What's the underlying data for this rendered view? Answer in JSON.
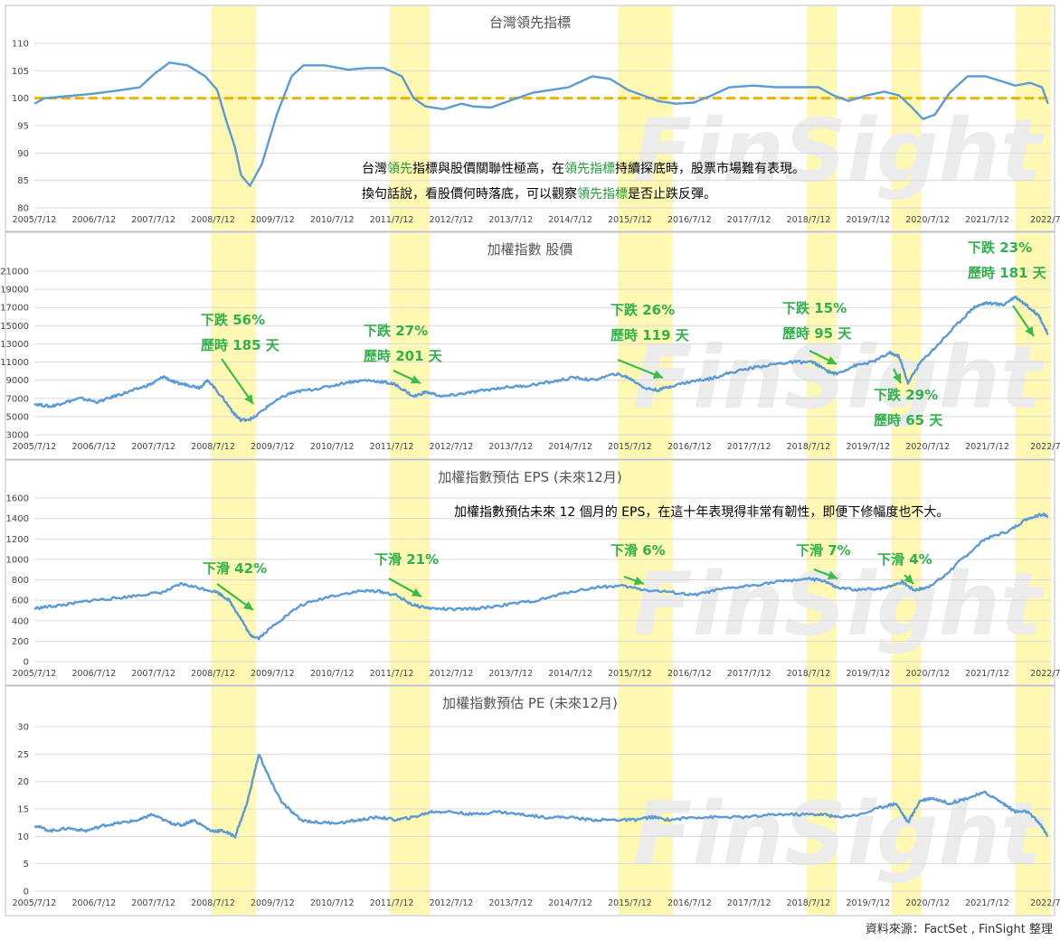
{
  "source_note": "資料來源：FactSet , FinSight 整理",
  "watermark": "FinSight",
  "chart_data": [
    {
      "type": "line",
      "title": "台灣領先指標",
      "color": "#5b9bd5",
      "reference_line": {
        "value": 100,
        "color": "#f0b400",
        "style": "dashed"
      },
      "ylim": [
        80,
        110
      ],
      "yticks": [
        80,
        85,
        90,
        95,
        100,
        105,
        110
      ],
      "xlim": [
        2005.53,
        2022.6
      ],
      "xtick_labels": [
        "2005/7/12",
        "2006/7/12",
        "2007/7/12",
        "2008/7/12",
        "2009/7/12",
        "2010/7/12",
        "2011/7/12",
        "2012/7/12",
        "2013/7/12",
        "2014/7/12",
        "2015/7/12",
        "2016/7/12",
        "2017/7/12",
        "2018/7/12",
        "2019/7/12",
        "2020/7/12",
        "2021/7/12",
        "2022/7/"
      ],
      "highlight_periods": [
        [
          2008.5,
          2009.25
        ],
        [
          2011.5,
          2012.17
        ],
        [
          2015.33,
          2016.25
        ],
        [
          2018.5,
          2019.0
        ],
        [
          2019.92,
          2020.42
        ],
        [
          2022.0,
          2022.6
        ]
      ],
      "annotations": [
        {
          "text_parts": [
            [
              "台灣",
              0
            ],
            [
              "領先",
              1
            ],
            [
              "指標與股價關聯性極高，在",
              0
            ],
            [
              "領先指標",
              1
            ],
            [
              "持續探底時，股票市場難有表現。",
              0
            ]
          ]
        },
        {
          "text_parts": [
            [
              "換句話說，看股價何時落底，可以觀察",
              0
            ],
            [
              "領先指標",
              1
            ],
            [
              "是否止跌反彈。",
              0
            ]
          ]
        }
      ],
      "x": [
        2005.53,
        2005.7,
        2006.0,
        2006.5,
        2007.0,
        2007.3,
        2007.55,
        2007.8,
        2008.1,
        2008.4,
        2008.6,
        2008.75,
        2008.9,
        2009.0,
        2009.15,
        2009.35,
        2009.6,
        2009.85,
        2010.05,
        2010.4,
        2010.8,
        2011.1,
        2011.4,
        2011.7,
        2011.9,
        2012.1,
        2012.4,
        2012.7,
        2012.9,
        2013.2,
        2013.5,
        2013.9,
        2014.2,
        2014.5,
        2014.9,
        2015.2,
        2015.5,
        2015.8,
        2016.0,
        2016.3,
        2016.6,
        2016.9,
        2017.2,
        2017.6,
        2018.0,
        2018.4,
        2018.7,
        2018.95,
        2019.2,
        2019.5,
        2019.8,
        2020.05,
        2020.25,
        2020.45,
        2020.65,
        2020.9,
        2021.2,
        2021.5,
        2021.8,
        2022.0,
        2022.25,
        2022.45,
        2022.55
      ],
      "values": [
        99,
        100,
        100.3,
        100.8,
        101.5,
        102,
        104.5,
        106.5,
        106,
        104,
        101.5,
        96,
        91,
        86,
        84,
        88,
        97,
        104,
        106,
        106,
        105.2,
        105.5,
        105.5,
        104,
        100,
        98.5,
        98,
        99,
        98.5,
        98.3,
        99.5,
        101,
        101.5,
        102,
        104,
        103.5,
        101.5,
        100.3,
        99.5,
        99,
        99.2,
        100.5,
        102,
        102.3,
        102,
        102,
        102,
        100.5,
        99.5,
        100.5,
        101.2,
        100.5,
        98.5,
        96.2,
        97,
        101,
        104,
        104,
        103,
        102.3,
        102.8,
        102,
        99
      ]
    },
    {
      "type": "line",
      "title": "加權指數 股價",
      "color": "#5b9bd5",
      "ylim": [
        3000,
        21000
      ],
      "yticks": [
        3000,
        5000,
        7000,
        9000,
        11000,
        13000,
        15000,
        17000,
        19000,
        21000
      ],
      "xlim": [
        2005.53,
        2022.6
      ],
      "xtick_labels": [
        "2005/7/12",
        "2006/7/12",
        "2007/7/12",
        "2008/7/12",
        "2009/7/12",
        "2010/7/12",
        "2011/7/12",
        "2012/7/12",
        "2013/7/12",
        "2014/7/12",
        "2015/7/12",
        "2016/7/12",
        "2017/7/12",
        "2018/7/12",
        "2019/7/12",
        "2020/7/12",
        "2021/7/12",
        "2022/7/"
      ],
      "highlight_periods": [
        [
          2008.5,
          2009.25
        ],
        [
          2011.5,
          2012.17
        ],
        [
          2015.33,
          2016.25
        ],
        [
          2018.5,
          2019.0
        ],
        [
          2019.92,
          2020.42
        ],
        [
          2022.0,
          2022.6
        ]
      ],
      "callouts": [
        {
          "line1": "下跌 56%",
          "line2": "歷時 185 天"
        },
        {
          "line1": "下跌 27%",
          "line2": "歷時 201 天"
        },
        {
          "line1": "下跌 26%",
          "line2": "歷時 119 天"
        },
        {
          "line1": "下跌 15%",
          "line2": "歷時 95 天"
        },
        {
          "line1": "下跌 29%",
          "line2": "歷時 65 天"
        },
        {
          "line1": "下跌 23%",
          "line2": "歷時 181 天"
        }
      ],
      "x": [
        2005.53,
        2005.8,
        2006.0,
        2006.3,
        2006.6,
        2006.9,
        2007.2,
        2007.5,
        2007.7,
        2007.9,
        2008.1,
        2008.3,
        2008.45,
        2008.7,
        2008.9,
        2009.0,
        2009.2,
        2009.5,
        2009.8,
        2010.0,
        2010.4,
        2010.8,
        2011.1,
        2011.4,
        2011.6,
        2011.9,
        2012.1,
        2012.4,
        2012.7,
        2013.0,
        2013.4,
        2013.8,
        2014.2,
        2014.6,
        2014.9,
        2015.3,
        2015.5,
        2015.8,
        2016.0,
        2016.3,
        2016.6,
        2016.9,
        2017.2,
        2017.6,
        2018.0,
        2018.3,
        2018.6,
        2018.85,
        2019.0,
        2019.3,
        2019.6,
        2019.9,
        2020.05,
        2020.2,
        2020.4,
        2020.7,
        2021.0,
        2021.3,
        2021.5,
        2021.8,
        2022.0,
        2022.2,
        2022.4,
        2022.55
      ],
      "values": [
        6400,
        6100,
        6500,
        7000,
        6600,
        7300,
        7900,
        8600,
        9400,
        8700,
        8500,
        8200,
        9000,
        7000,
        5200,
        4600,
        4800,
        6400,
        7500,
        7800,
        8200,
        8800,
        9000,
        8800,
        8500,
        7200,
        7700,
        7200,
        7500,
        7800,
        8200,
        8400,
        8800,
        9300,
        9000,
        9700,
        9300,
        8100,
        7900,
        8500,
        8900,
        9200,
        9800,
        10400,
        10800,
        11000,
        11000,
        10000,
        9700,
        10600,
        11000,
        12000,
        11600,
        8700,
        10900,
        12900,
        15000,
        17000,
        17500,
        17300,
        18200,
        17200,
        16100,
        14000
      ]
    },
    {
      "type": "line",
      "title": "加權指數預估 EPS (未來12月)",
      "color": "#5b9bd5",
      "ylim": [
        0,
        1600
      ],
      "yticks": [
        0,
        200,
        400,
        600,
        800,
        1000,
        1200,
        1400,
        1600
      ],
      "xlim": [
        2005.53,
        2022.6
      ],
      "xtick_labels": [
        "2005/7/12",
        "2006/7/12",
        "2007/7/12",
        "2008/7/12",
        "2009/7/12",
        "2010/7/12",
        "2011/7/12",
        "2012/7/12",
        "2013/7/12",
        "2014/7/12",
        "2015/7/12",
        "2016/7/12",
        "2017/7/12",
        "2018/7/12",
        "2019/7/12",
        "2020/7/12",
        "2021/7/12",
        "2022/7/"
      ],
      "highlight_periods": [
        [
          2008.5,
          2009.25
        ],
        [
          2011.5,
          2012.17
        ],
        [
          2015.33,
          2016.25
        ],
        [
          2018.5,
          2019.0
        ],
        [
          2019.92,
          2020.42
        ],
        [
          2022.0,
          2022.6
        ]
      ],
      "annotation": "加權指數預估未來 12 個月的 EPS，在這十年表現得非常有韌性，即便下修幅度也不大。",
      "callouts": [
        "下滑 42%",
        "下滑 21%",
        "下滑 6%",
        "下滑 7%",
        "下滑 4%"
      ],
      "x": [
        2005.53,
        2005.8,
        2006.1,
        2006.5,
        2006.9,
        2007.3,
        2007.7,
        2008.0,
        2008.3,
        2008.6,
        2008.8,
        2009.0,
        2009.15,
        2009.3,
        2009.6,
        2010.0,
        2010.5,
        2011.0,
        2011.3,
        2011.6,
        2011.9,
        2012.2,
        2012.6,
        2013.0,
        2013.5,
        2014.0,
        2014.5,
        2015.0,
        2015.4,
        2015.8,
        2016.2,
        2016.6,
        2017.0,
        2017.5,
        2018.0,
        2018.5,
        2018.8,
        2019.0,
        2019.4,
        2019.8,
        2020.1,
        2020.3,
        2020.5,
        2020.8,
        2021.1,
        2021.5,
        2021.9,
        2022.2,
        2022.45,
        2022.55
      ],
      "values": [
        520,
        540,
        560,
        600,
        620,
        650,
        680,
        760,
        720,
        680,
        600,
        420,
        260,
        230,
        380,
        550,
        640,
        690,
        690,
        650,
        550,
        520,
        510,
        520,
        560,
        600,
        680,
        730,
        740,
        700,
        680,
        650,
        700,
        740,
        780,
        810,
        790,
        720,
        700,
        720,
        780,
        700,
        720,
        830,
        1000,
        1200,
        1280,
        1400,
        1440,
        1420
      ]
    },
    {
      "type": "line",
      "title": "加權指數預估 PE (未來12月)",
      "color": "#5b9bd5",
      "ylim": [
        0,
        30
      ],
      "yticks": [
        0,
        5,
        10,
        15,
        20,
        25,
        30
      ],
      "xlim": [
        2005.53,
        2022.6
      ],
      "xtick_labels": [
        "2005/7/12",
        "2006/7/12",
        "2007/7/12",
        "2008/7/12",
        "2009/7/12",
        "2010/7/12",
        "2011/7/12",
        "2012/7/12",
        "2013/7/12",
        "2014/7/12",
        "2015/7/12",
        "2016/7/12",
        "2017/7/12",
        "2018/7/12",
        "2019/7/12",
        "2020/7/12",
        "2021/7/12",
        "2022/7/"
      ],
      "highlight_periods": [
        [
          2008.5,
          2009.25
        ],
        [
          2011.5,
          2012.17
        ],
        [
          2015.33,
          2016.25
        ],
        [
          2018.5,
          2019.0
        ],
        [
          2019.92,
          2020.42
        ],
        [
          2022.0,
          2022.6
        ]
      ],
      "x": [
        2005.53,
        2005.8,
        2006.1,
        2006.4,
        2006.7,
        2007.0,
        2007.3,
        2007.5,
        2007.8,
        2008.0,
        2008.2,
        2008.5,
        2008.7,
        2008.9,
        2009.1,
        2009.3,
        2009.5,
        2009.7,
        2010.0,
        2010.3,
        2010.7,
        2011.0,
        2011.3,
        2011.6,
        2011.9,
        2012.2,
        2012.5,
        2012.9,
        2013.3,
        2013.7,
        2014.1,
        2014.5,
        2014.9,
        2015.3,
        2015.6,
        2015.9,
        2016.2,
        2016.6,
        2017.0,
        2017.5,
        2018.0,
        2018.5,
        2018.8,
        2019.0,
        2019.4,
        2019.8,
        2020.0,
        2020.2,
        2020.4,
        2020.6,
        2020.9,
        2021.2,
        2021.5,
        2021.8,
        2022.0,
        2022.2,
        2022.4,
        2022.55
      ],
      "values": [
        12,
        11,
        11.5,
        11,
        12,
        12.5,
        13,
        14,
        12.5,
        12,
        13,
        11,
        11,
        10,
        16,
        25,
        20,
        16,
        13,
        12.5,
        12.5,
        13,
        13.5,
        13,
        13.5,
        14.5,
        14.5,
        14,
        14.5,
        14,
        13.5,
        13.5,
        13,
        13,
        13,
        13.5,
        13,
        13.5,
        13.5,
        13.5,
        14,
        14,
        14,
        13.5,
        14,
        15.5,
        16,
        12.5,
        16.5,
        17,
        16,
        17,
        18,
        16,
        14.5,
        14.5,
        12.5,
        10
      ]
    }
  ]
}
